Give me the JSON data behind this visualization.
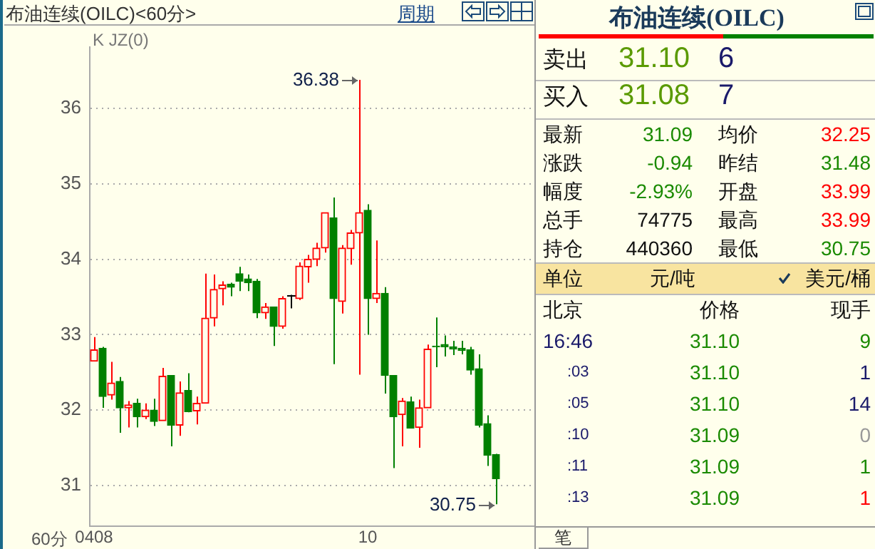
{
  "chart_data": [
    {
      "type": "candlestick",
      "title": "布油连续(OILC)<60分>",
      "subtitle": "K JZ(0)",
      "categories": [
        "0408",
        null,
        null,
        null,
        null,
        null,
        null,
        null,
        null,
        null,
        null,
        null,
        null,
        null,
        null,
        null,
        null,
        null,
        null,
        null,
        null,
        null,
        null,
        null,
        null,
        null,
        null,
        null,
        null,
        null,
        null,
        null,
        "10",
        null,
        null,
        null,
        null,
        null,
        null,
        null,
        null,
        null,
        null,
        null,
        null,
        null,
        null,
        null
      ],
      "ohlc": [
        [
          32.65,
          32.97,
          32.65,
          32.8
        ],
        [
          32.82,
          32.84,
          32.03,
          32.18
        ],
        [
          32.2,
          32.64,
          32.14,
          32.36
        ],
        [
          32.38,
          32.44,
          31.7,
          32.03
        ],
        [
          32.03,
          32.12,
          31.77,
          32.07
        ],
        [
          32.09,
          32.15,
          31.77,
          31.91
        ],
        [
          31.91,
          32.09,
          31.88,
          32.0
        ],
        [
          32.0,
          32.15,
          31.79,
          31.85
        ],
        [
          31.86,
          32.56,
          31.86,
          32.45
        ],
        [
          32.46,
          32.46,
          31.52,
          31.8
        ],
        [
          31.8,
          32.38,
          31.66,
          32.23
        ],
        [
          32.26,
          32.49,
          31.97,
          31.98
        ],
        [
          31.99,
          32.18,
          31.81,
          32.09
        ],
        [
          32.09,
          33.81,
          32.09,
          33.22
        ],
        [
          33.22,
          33.8,
          33.11,
          33.6
        ],
        [
          33.61,
          33.71,
          33.39,
          33.66
        ],
        [
          33.67,
          33.69,
          33.51,
          33.63
        ],
        [
          33.81,
          33.9,
          33.58,
          33.71
        ],
        [
          33.74,
          33.8,
          33.58,
          33.69
        ],
        [
          33.71,
          33.74,
          33.22,
          33.29
        ],
        [
          33.29,
          33.42,
          33.21,
          33.37
        ],
        [
          33.37,
          33.37,
          32.85,
          33.11
        ],
        [
          33.11,
          33.51,
          33.08,
          33.48
        ],
        [
          33.53,
          33.53,
          33.35,
          33.53
        ],
        [
          33.48,
          33.96,
          33.46,
          33.91
        ],
        [
          33.9,
          34.06,
          33.69,
          34.0
        ],
        [
          34.0,
          34.22,
          33.91,
          34.15
        ],
        [
          34.15,
          34.62,
          34.09,
          34.62
        ],
        [
          34.55,
          34.82,
          32.61,
          33.48
        ],
        [
          33.44,
          34.19,
          33.28,
          34.15
        ],
        [
          34.14,
          34.39,
          33.93,
          34.35
        ],
        [
          34.35,
          36.38,
          32.47,
          34.62
        ],
        [
          34.65,
          34.73,
          33.0,
          33.48
        ],
        [
          33.48,
          34.25,
          33.42,
          33.55
        ],
        [
          33.55,
          33.63,
          32.22,
          32.46
        ],
        [
          32.46,
          32.46,
          31.23,
          31.91
        ],
        [
          31.94,
          32.16,
          31.52,
          32.12
        ],
        [
          32.11,
          32.18,
          31.76,
          31.76
        ],
        [
          31.77,
          32.14,
          31.5,
          32.03
        ],
        [
          32.03,
          32.87,
          32.03,
          32.81
        ],
        [
          32.85,
          33.23,
          32.57,
          32.84
        ],
        [
          32.87,
          32.99,
          32.71,
          32.84
        ],
        [
          32.84,
          32.92,
          32.73,
          32.81
        ],
        [
          32.82,
          32.92,
          32.74,
          32.79
        ],
        [
          32.8,
          32.84,
          32.47,
          32.53
        ],
        [
          32.55,
          32.74,
          31.77,
          31.8
        ],
        [
          31.82,
          31.93,
          31.26,
          31.4
        ],
        [
          31.41,
          31.42,
          30.75,
          31.09
        ]
      ],
      "colors": [
        "#ff0000",
        "#008000",
        "#ff0000",
        "#008000",
        "#ff0000",
        "#008000",
        "#ff0000",
        "#008000",
        "#ff0000",
        "#008000",
        "#ff0000",
        "#008000",
        "#ff0000",
        "#ff0000",
        "#ff0000",
        "#ff0000",
        "#008000",
        "#008000",
        "#008000",
        "#008000",
        "#ff0000",
        "#008000",
        "#ff0000",
        "#000000",
        "#ff0000",
        "#ff0000",
        "#ff0000",
        "#ff0000",
        "#008000",
        "#ff0000",
        "#ff0000",
        "#ff0000",
        "#008000",
        "#ff0000",
        "#008000",
        "#008000",
        "#ff0000",
        "#008000",
        "#ff0000",
        "#ff0000",
        "#008000",
        "#008000",
        "#008000",
        "#008000",
        "#008000",
        "#008000",
        "#008000",
        "#008000"
      ],
      "ylim": [
        30.46,
        36.82
      ],
      "yticks": [
        31,
        32,
        33,
        34,
        35,
        36
      ],
      "grid": "y",
      "annotations": [
        "周期",
        "60分",
        "36.38",
        "30.75"
      ]
    },
    {
      "type": "other",
      "title": "布油连续(OILC)",
      "annotations": [
        "卖出",
        "31.10",
        "6",
        "买入",
        "31.08",
        "7",
        "最新",
        "31.09",
        "均价",
        "32.25",
        "涨跌",
        "-0.94",
        "昨结",
        "31.48",
        "幅度",
        "-2.93%",
        "开盘",
        "33.99",
        "总手",
        "74775",
        "最高",
        "33.99",
        "持仓",
        "440360",
        "最低",
        "30.75",
        "单位",
        "元/吨",
        "美元/桶",
        "北京",
        "价格",
        "现手",
        "16:46",
        "31.10",
        "9",
        ":03",
        "31.10",
        "1",
        ":05",
        "31.10",
        "14",
        ":10",
        "31.09",
        "0",
        ":11",
        "31.09",
        "1",
        ":13",
        "31.09",
        "1",
        "笔"
      ]
    }
  ]
}
